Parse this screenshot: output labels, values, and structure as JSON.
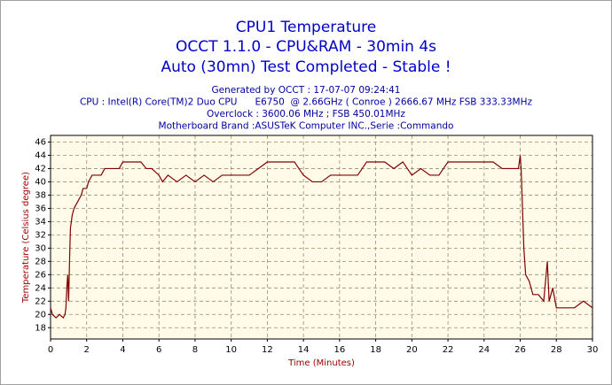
{
  "chart_data": {
    "type": "line",
    "title": [
      "CPU1 Temperature",
      "OCCT 1.1.0 - CPU&RAM - 30min 4s",
      "Auto (30mn) Test Completed - Stable !"
    ],
    "subtitle": [
      "Generated by OCCT : 17-07-07 09:24:41",
      "CPU : Intel(R) Core(TM)2 Duo CPU      E6750  @ 2.66GHz ( Conroe ) 2666.67 MHz FSB 333.33MHz",
      "Overclock : 3600.06 MHz ; FSB 450.01MHz",
      "Motherboard Brand :ASUSTeK Computer INC.,Serie :Commando"
    ],
    "xlabel": "Time (Minutes)",
    "ylabel": "Temperature (Celsius degree)",
    "x": [
      0,
      0.1,
      0.3,
      0.5,
      0.7,
      0.8,
      0.85,
      0.9,
      0.95,
      1.0,
      1.05,
      1.1,
      1.2,
      1.3,
      1.5,
      1.7,
      1.8,
      2.0,
      2.1,
      2.3,
      2.8,
      3.0,
      3.5,
      3.8,
      4.0,
      4.5,
      5.0,
      5.3,
      5.6,
      6.0,
      6.2,
      6.5,
      7,
      7.5,
      8,
      8.5,
      9,
      9.5,
      10,
      10.5,
      11,
      11.5,
      12,
      12.5,
      13.5,
      14,
      14.5,
      15,
      15.5,
      16,
      16.5,
      17,
      17.5,
      18,
      18.5,
      19,
      19.5,
      20,
      20.5,
      21,
      21.5,
      22,
      22.5,
      23,
      24,
      24.5,
      25,
      25.5,
      25.9,
      26.0,
      26.05,
      26.1,
      26.2,
      26.3,
      26.5,
      26.7,
      27,
      27.3,
      27.5,
      27.6,
      27.8,
      28,
      28.5,
      29,
      29.5,
      30
    ],
    "values": [
      21,
      20,
      19.5,
      20,
      19.5,
      20,
      21,
      24,
      26,
      22,
      28,
      33,
      35,
      36,
      37,
      38,
      39,
      39,
      40,
      41,
      41,
      42,
      42,
      42,
      43,
      43,
      43,
      42,
      42,
      41,
      40,
      41,
      40,
      41,
      40,
      41,
      40,
      41,
      41,
      41,
      41,
      42,
      43,
      43,
      43,
      41,
      40,
      40,
      41,
      41,
      41,
      41,
      43,
      43,
      43,
      42,
      43,
      41,
      42,
      41,
      41,
      43,
      43,
      43,
      43,
      43,
      42,
      42,
      42,
      44,
      42,
      38,
      30,
      26,
      25,
      23,
      23,
      22,
      28,
      22,
      24,
      21,
      21,
      21,
      22,
      21
    ],
    "color": "#800000",
    "xlim": [
      0,
      30
    ],
    "xticks": [
      0,
      2,
      4,
      6,
      8,
      10,
      12,
      14,
      16,
      18,
      20,
      22,
      24,
      26,
      28,
      30
    ],
    "ylim": [
      16.3,
      47
    ],
    "yticks": [
      18,
      20,
      22,
      24,
      26,
      28,
      30,
      32,
      34,
      36,
      38,
      40,
      42,
      44,
      46
    ],
    "grid": true
  }
}
